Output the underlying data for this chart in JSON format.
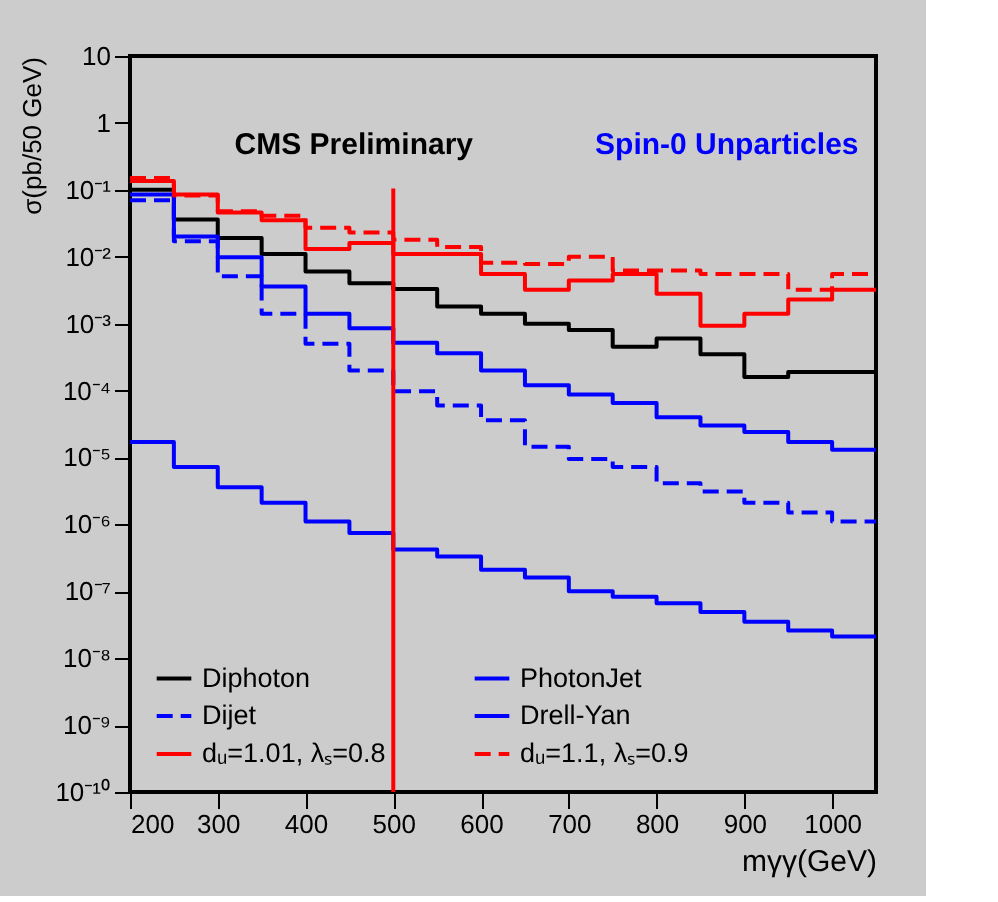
{
  "chart_data": {
    "type": "histogram",
    "xlabel": "mγγ(GeV)",
    "ylabel": "σ(pb/50 GeV)",
    "annotations": [
      "CMS Preliminary",
      "Spin-0 Unparticles"
    ],
    "bins": [
      200,
      250,
      300,
      350,
      400,
      450,
      500,
      550,
      600,
      650,
      700,
      750,
      800,
      850,
      900,
      950,
      1000,
      1050
    ],
    "series": [
      {
        "name": "Diphoton",
        "color": "#000000",
        "line_style": "solid",
        "values": [
          0.1,
          0.036,
          0.019,
          0.011,
          0.006,
          0.004,
          0.0033,
          0.0018,
          0.0014,
          0.001,
          0.0008,
          0.00045,
          0.0006,
          0.00035,
          0.00016,
          0.00019,
          0.00019
        ]
      },
      {
        "name": "Dijet",
        "color": "#0000ff",
        "line_style": "dashed",
        "values": [
          0.07,
          0.017,
          0.0051,
          0.0014,
          0.0005,
          0.0002,
          9.8e-05,
          6e-05,
          3.6e-05,
          1.45e-05,
          9.5e-06,
          7.2e-06,
          4.1e-06,
          3.1e-06,
          2.1e-06,
          1.5e-06,
          1.1e-06
        ]
      },
      {
        "name": "dᵤ=1.01, λₛ=0.8",
        "color": "#ff0000",
        "line_style": "solid",
        "values": [
          0.135,
          0.085,
          0.046,
          0.035,
          0.013,
          0.016,
          0.011,
          0.011,
          0.0055,
          0.0032,
          0.0044,
          0.0055,
          0.0028,
          0.00093,
          0.0014,
          0.0023,
          0.0032
        ]
      },
      {
        "name": "PhotonJet",
        "color": "#0000ff",
        "line_style": "solid",
        "values": [
          0.085,
          0.02,
          0.0098,
          0.0036,
          0.0014,
          0.00085,
          0.00052,
          0.00036,
          0.0002,
          0.00012,
          8.7e-05,
          6.5e-05,
          4e-05,
          3e-05,
          2.4e-05,
          1.7e-05,
          1.3e-05
        ]
      },
      {
        "name": "Drell-Yan",
        "color": "#0000fe",
        "line_style": "solid",
        "values": [
          1.7e-05,
          7.2e-06,
          3.6e-06,
          2.1e-06,
          1.1e-06,
          7.4e-07,
          4.2e-07,
          3.3e-07,
          2.1e-07,
          1.6e-07,
          1e-07,
          8.3e-08,
          6.6e-08,
          4.9e-08,
          3.5e-08,
          2.6e-08,
          2.1e-08
        ]
      },
      {
        "name": "dᵤ=1.1, λₛ=0.9",
        "color": "#ff0000",
        "line_style": "dashed",
        "values": [
          0.15,
          0.082,
          0.048,
          0.041,
          0.027,
          0.023,
          0.018,
          0.014,
          0.0081,
          0.0078,
          0.01,
          0.0062,
          0.0062,
          0.0055,
          0.0055,
          0.0032,
          0.0055
        ]
      }
    ],
    "ref_lines": [
      {
        "axis": "x",
        "value": 500,
        "color": "#ff0000"
      }
    ],
    "log": true,
    "xlim": [
      200,
      1050
    ],
    "xticks": [
      200,
      300,
      400,
      500,
      600,
      700,
      800,
      900,
      1000
    ],
    "ylim": [
      1e-10,
      10
    ],
    "yticks": [
      {
        "value": 1e-10,
        "label": "10⁻¹⁰"
      },
      {
        "value": 1e-09,
        "label": "10⁻⁹"
      },
      {
        "value": 1e-08,
        "label": "10⁻⁸"
      },
      {
        "value": 1e-07,
        "label": "10⁻⁷"
      },
      {
        "value": 1e-06,
        "label": "10⁻⁶"
      },
      {
        "value": 1e-05,
        "label": "10⁻⁵"
      },
      {
        "value": 0.0001,
        "label": "10⁻⁴"
      },
      {
        "value": 0.001,
        "label": "10⁻³"
      },
      {
        "value": 0.01,
        "label": "10⁻²"
      },
      {
        "value": 0.1,
        "label": "10⁻¹"
      },
      1,
      10
    ],
    "grid": false,
    "legend": "bottom"
  }
}
